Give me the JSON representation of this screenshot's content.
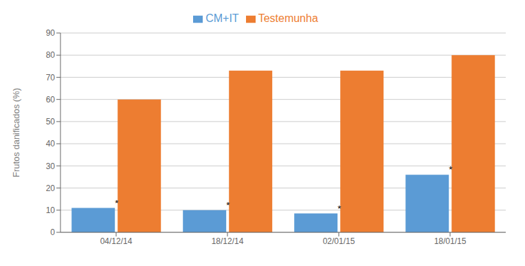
{
  "chart_data": {
    "type": "bar",
    "categories": [
      "04/12/14",
      "18/12/14",
      "02/01/15",
      "18/01/15"
    ],
    "series": [
      {
        "name": "CM+IT",
        "color": "#5B9BD5",
        "values": [
          11,
          10,
          8.5,
          26
        ]
      },
      {
        "name": "Testemunha",
        "color": "#ED7D31",
        "values": [
          60,
          73,
          73,
          80
        ]
      }
    ],
    "ylabel": "Frutos danificados (%)",
    "ylim": [
      0,
      90
    ],
    "yticks": [
      0,
      10,
      20,
      30,
      40,
      50,
      60,
      70,
      80,
      90
    ],
    "grid": true,
    "legend": "top",
    "annotations": [
      {
        "series": "CM+IT",
        "category": "04/12/14",
        "text": "*"
      },
      {
        "series": "CM+IT",
        "category": "18/12/14",
        "text": "*"
      },
      {
        "series": "CM+IT",
        "category": "02/01/15",
        "text": "*"
      },
      {
        "series": "CM+IT",
        "category": "18/01/15",
        "text": "*"
      }
    ]
  }
}
